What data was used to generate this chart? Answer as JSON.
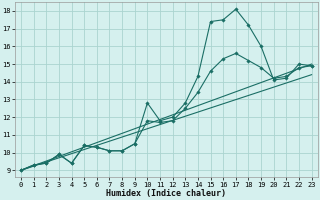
{
  "xlabel": "Humidex (Indice chaleur)",
  "background_color": "#d5f0ee",
  "grid_color": "#aad4d0",
  "line_color": "#1a6e65",
  "xlim": [
    -0.5,
    23.5
  ],
  "ylim": [
    8.6,
    18.5
  ],
  "xticks": [
    0,
    1,
    2,
    3,
    4,
    5,
    6,
    7,
    8,
    9,
    10,
    11,
    12,
    13,
    14,
    15,
    16,
    17,
    18,
    19,
    20,
    21,
    22,
    23
  ],
  "yticks": [
    9,
    10,
    11,
    12,
    13,
    14,
    15,
    16,
    17,
    18
  ],
  "line1_x": [
    0,
    1,
    2,
    3,
    4,
    5,
    6,
    7,
    8,
    9,
    10,
    11,
    12,
    13,
    14,
    15,
    16,
    17,
    18,
    19,
    20,
    21,
    22,
    23
  ],
  "line1_y": [
    9.0,
    9.3,
    9.4,
    9.9,
    9.4,
    10.4,
    10.3,
    10.1,
    10.1,
    10.5,
    12.8,
    11.8,
    12.0,
    12.8,
    14.3,
    17.4,
    17.5,
    18.1,
    17.2,
    16.0,
    14.1,
    14.2,
    15.0,
    14.9
  ],
  "line2_x": [
    0,
    1,
    2,
    3,
    4,
    5,
    6,
    7,
    8,
    9,
    10,
    11,
    12,
    13,
    14,
    15,
    16,
    17,
    18,
    19,
    20,
    21,
    22,
    23
  ],
  "line2_y": [
    9.0,
    9.3,
    9.4,
    9.9,
    9.4,
    10.4,
    10.3,
    10.1,
    10.1,
    10.5,
    11.8,
    11.7,
    11.8,
    12.5,
    13.4,
    14.6,
    15.3,
    15.6,
    15.2,
    14.8,
    14.2,
    14.3,
    14.8,
    14.9
  ],
  "line3_x": [
    0,
    23
  ],
  "line3_y": [
    9.0,
    15.0
  ],
  "line4_x": [
    0,
    23
  ],
  "line4_y": [
    9.0,
    14.4
  ],
  "marker": "D",
  "markersize": 1.8,
  "linewidth": 0.8,
  "tick_fontsize": 5.0,
  "xlabel_fontsize": 6.0
}
